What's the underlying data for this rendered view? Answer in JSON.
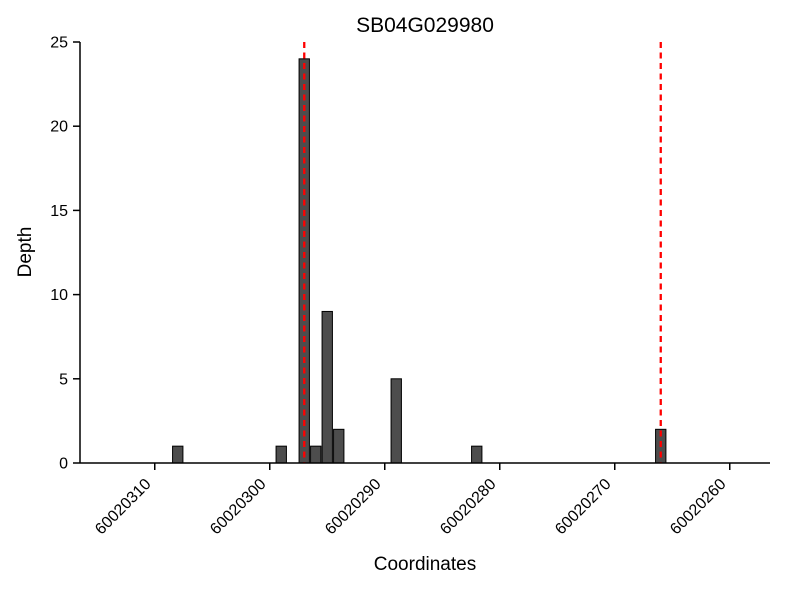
{
  "chart_data": {
    "type": "bar",
    "title": "SB04G029980",
    "xlabel": "Coordinates",
    "ylabel": "Depth",
    "xlim": [
      60020316.5,
      60020256.5
    ],
    "ylim": [
      0,
      25
    ],
    "x_axis_reversed": true,
    "x_ticks": [
      60020310,
      60020300,
      60020290,
      60020280,
      60020270,
      60020260
    ],
    "y_ticks": [
      0,
      5,
      10,
      15,
      20,
      25
    ],
    "grid": false,
    "bar_width": 0.9,
    "bar_color": "#4d4d4d",
    "bar_edge_color": "#000000",
    "axis_color": "#000000",
    "vline_color": "#ff0000",
    "vline_style": "dashed",
    "bars": [
      {
        "coordinate": 60020308,
        "depth": 1
      },
      {
        "coordinate": 60020299,
        "depth": 1
      },
      {
        "coordinate": 60020297,
        "depth": 24
      },
      {
        "coordinate": 60020296,
        "depth": 1
      },
      {
        "coordinate": 60020295,
        "depth": 9
      },
      {
        "coordinate": 60020294,
        "depth": 2
      },
      {
        "coordinate": 60020289,
        "depth": 5
      },
      {
        "coordinate": 60020282,
        "depth": 1
      },
      {
        "coordinate": 60020266,
        "depth": 2
      }
    ],
    "vlines": [
      60020297,
      60020266
    ]
  }
}
